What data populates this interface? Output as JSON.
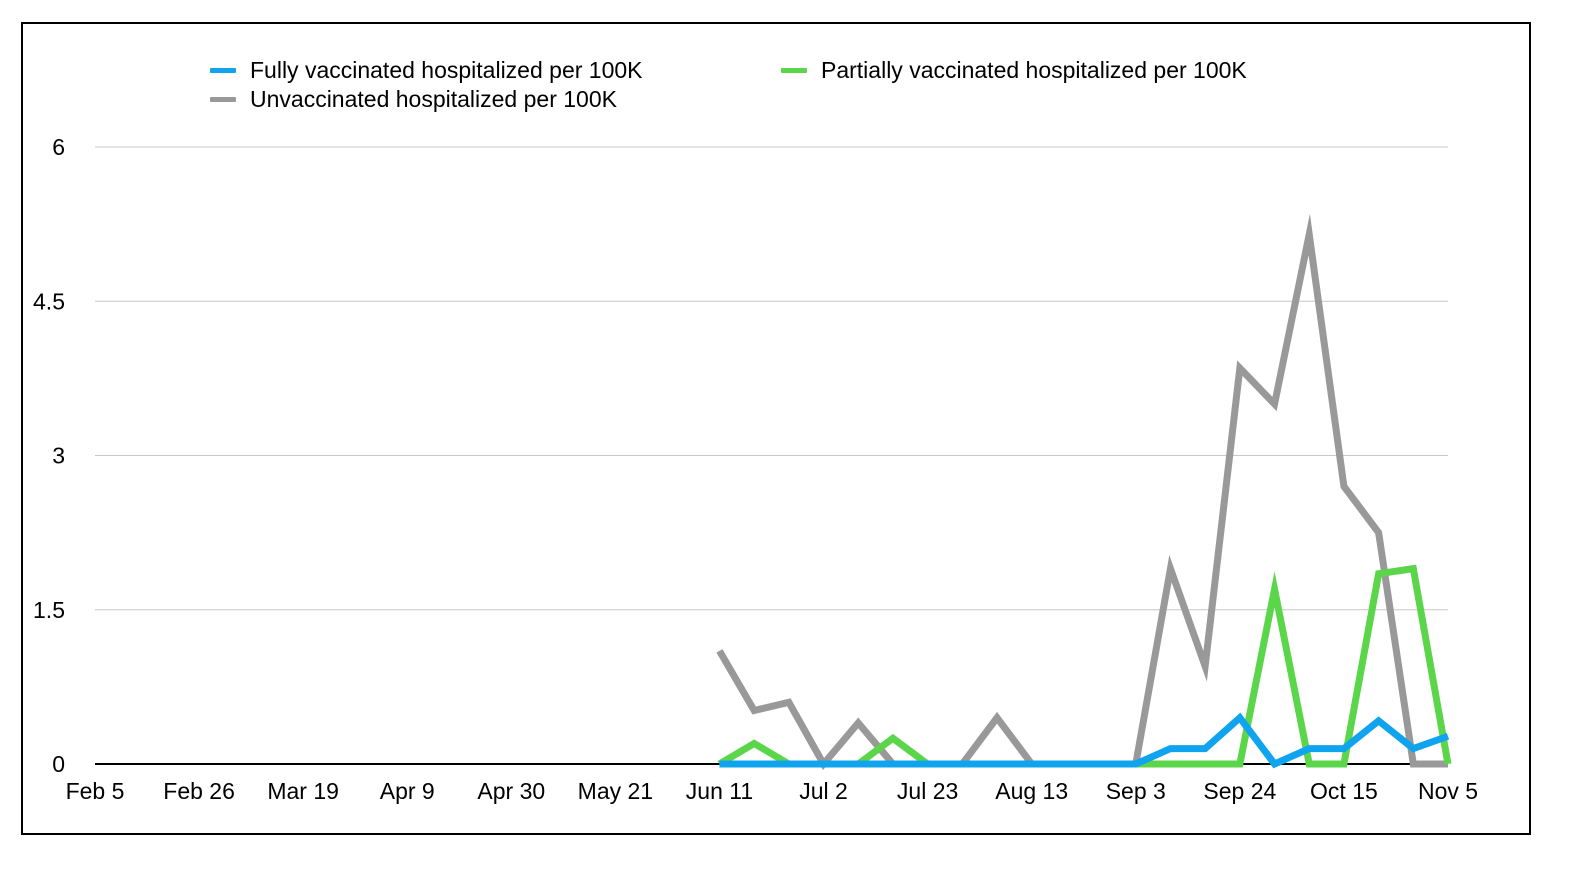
{
  "chart_data": {
    "type": "line",
    "title": "",
    "xlabel": "",
    "ylabel": "",
    "ylim": [
      0,
      6
    ],
    "yticks": [
      "0",
      "1.5",
      "3",
      "4.5",
      "6"
    ],
    "ytick_values": [
      0,
      1.5,
      3,
      4.5,
      6
    ],
    "grid": true,
    "legend_position": "top",
    "x_dates": [
      "Feb 5",
      "Feb 12",
      "Feb 19",
      "Feb 26",
      "Mar 5",
      "Mar 12",
      "Mar 19",
      "Mar 26",
      "Apr 2",
      "Apr 9",
      "Apr 16",
      "Apr 23",
      "Apr 30",
      "May 7",
      "May 14",
      "May 21",
      "May 28",
      "Jun 4",
      "Jun 11",
      "Jun 18",
      "Jun 25",
      "Jul 2",
      "Jul 9",
      "Jul 16",
      "Jul 23",
      "Jul 30",
      "Aug 6",
      "Aug 13",
      "Aug 20",
      "Aug 27",
      "Sep 3",
      "Sep 10",
      "Sep 17",
      "Sep 24",
      "Oct 1",
      "Oct 8",
      "Oct 15",
      "Oct 22",
      "Oct 29",
      "Nov 5"
    ],
    "xtick_labels": [
      "Feb 5",
      "Feb 26",
      "Mar 19",
      "Apr 9",
      "Apr 30",
      "May 21",
      "Jun 11",
      "Jul 2",
      "Jul 23",
      "Aug 13",
      "Sep 3",
      "Sep 24",
      "Oct 15",
      "Nov 5"
    ],
    "series": [
      {
        "name": "Unvaccinated hospitalized per 100K",
        "color": "#999999",
        "values": [
          null,
          null,
          null,
          null,
          null,
          null,
          null,
          null,
          null,
          null,
          null,
          null,
          null,
          null,
          null,
          null,
          null,
          null,
          1.1,
          0.52,
          0.6,
          0,
          0.4,
          0,
          0,
          0,
          0.45,
          0,
          0,
          0,
          0,
          1.9,
          0.95,
          3.85,
          3.5,
          5.15,
          2.7,
          2.25,
          0,
          0
        ]
      },
      {
        "name": "Partially vaccinated hospitalized per 100K",
        "color": "#5bd64b",
        "values": [
          null,
          null,
          null,
          null,
          null,
          null,
          null,
          null,
          null,
          null,
          null,
          null,
          null,
          null,
          null,
          null,
          null,
          null,
          0,
          0.2,
          0,
          0,
          0,
          0.25,
          0,
          0,
          0,
          0,
          0,
          0,
          0,
          0,
          0,
          0,
          1.7,
          0,
          0,
          1.85,
          1.9,
          0
        ]
      },
      {
        "name": "Fully vaccinated hospitalized per 100K",
        "color": "#10a4ee",
        "values": [
          null,
          null,
          null,
          null,
          null,
          null,
          null,
          null,
          null,
          null,
          null,
          null,
          null,
          null,
          null,
          null,
          null,
          null,
          0,
          0,
          0,
          0,
          0,
          0,
          0,
          0,
          0,
          0,
          0,
          0,
          0,
          0.15,
          0.15,
          0.45,
          0,
          0.15,
          0.15,
          0.42,
          0.15,
          0.27
        ]
      }
    ]
  },
  "legend": [
    {
      "label": "Fully vaccinated hospitalized per 100K",
      "color": "#10a4ee"
    },
    {
      "label": "Partially vaccinated hospitalized per 100K",
      "color": "#5bd64b"
    },
    {
      "label": "Unvaccinated hospitalized per 100K",
      "color": "#999999"
    }
  ]
}
